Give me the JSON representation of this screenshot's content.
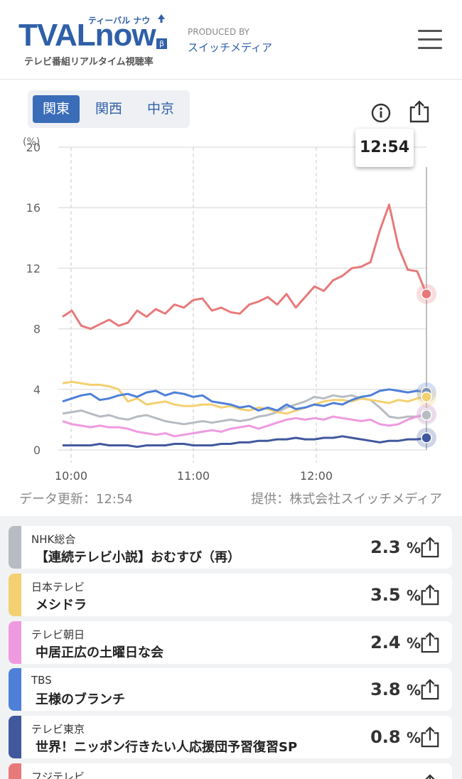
{
  "header": {
    "logo_main": "TVALnow",
    "logo_kana": "ティーバル ナウ",
    "logo_beta": "β",
    "tagline": "テレビ番組リアルタイム視聴率",
    "produced_by": "PRODUCED BY",
    "producer": "スイッチメディア"
  },
  "tabs": [
    {
      "label": "関東",
      "active": true
    },
    {
      "label": "関西",
      "active": false
    },
    {
      "label": "中京",
      "active": false
    }
  ],
  "tooltip_time": "12:54",
  "chart_data": {
    "type": "line",
    "y_unit": "(%)",
    "ylim": [
      0,
      20
    ],
    "yticks": [
      "0",
      "4",
      "8",
      "12",
      "16",
      "20"
    ],
    "xticks": [
      "10:00",
      "11:00",
      "12:00"
    ],
    "series": [
      {
        "name": "フジテレビ",
        "color": "#e8797a",
        "end": 10.3,
        "values": [
          8.8,
          9.2,
          8.2,
          8.0,
          8.3,
          8.6,
          8.2,
          8.4,
          9.2,
          8.8,
          9.3,
          9.0,
          9.6,
          9.4,
          9.9,
          10.0,
          9.2,
          9.4,
          9.1,
          9.0,
          9.6,
          9.8,
          10.1,
          9.6,
          10.3,
          9.4,
          10.1,
          10.8,
          10.5,
          11.2,
          11.5,
          12.0,
          12.1,
          12.4,
          14.5,
          16.2,
          13.4,
          11.9,
          11.8,
          10.3
        ]
      },
      {
        "name": "TBS",
        "color": "#4f80d9",
        "end": 3.8,
        "values": [
          3.2,
          3.4,
          3.6,
          3.7,
          3.3,
          3.4,
          3.6,
          3.7,
          3.5,
          3.8,
          3.9,
          3.6,
          3.8,
          3.7,
          3.5,
          3.6,
          3.2,
          3.1,
          3.0,
          2.8,
          2.9,
          2.6,
          2.8,
          2.6,
          3.0,
          2.7,
          2.8,
          3.0,
          2.9,
          3.1,
          3.0,
          3.3,
          3.5,
          3.6,
          3.9,
          4.0,
          3.9,
          3.8,
          3.9,
          3.8
        ]
      },
      {
        "name": "日本テレビ",
        "color": "#f3d071",
        "end": 3.5,
        "values": [
          4.4,
          4.5,
          4.4,
          4.3,
          4.3,
          4.2,
          4.0,
          3.2,
          3.4,
          3.0,
          3.1,
          3.2,
          3.0,
          2.9,
          2.9,
          3.0,
          3.0,
          2.8,
          2.9,
          2.7,
          2.6,
          2.8,
          2.7,
          2.5,
          2.4,
          2.6,
          2.8,
          3.0,
          3.2,
          3.3,
          3.3,
          3.2,
          3.4,
          3.3,
          3.2,
          3.1,
          3.3,
          3.2,
          3.4,
          3.5
        ]
      },
      {
        "name": "テレビ朝日",
        "color": "#ef9ae0",
        "end": 2.4,
        "values": [
          1.9,
          1.7,
          1.6,
          1.5,
          1.6,
          1.5,
          1.5,
          1.4,
          1.2,
          1.1,
          1.0,
          1.1,
          0.9,
          1.0,
          1.1,
          1.2,
          1.3,
          1.2,
          1.4,
          1.5,
          1.6,
          1.4,
          1.6,
          1.8,
          2.0,
          2.1,
          2.0,
          2.1,
          2.0,
          2.2,
          2.1,
          2.0,
          1.9,
          2.0,
          1.7,
          1.6,
          1.7,
          2.0,
          2.2,
          2.4
        ]
      },
      {
        "name": "NHK総合",
        "color": "#b7bbc2",
        "end": 2.3,
        "values": [
          2.4,
          2.5,
          2.6,
          2.4,
          2.2,
          2.3,
          2.1,
          2.0,
          2.2,
          2.3,
          2.1,
          1.9,
          1.8,
          1.7,
          1.8,
          1.9,
          1.8,
          1.9,
          2.0,
          1.9,
          2.0,
          2.2,
          2.3,
          2.5,
          2.8,
          3.0,
          3.2,
          3.5,
          3.4,
          3.6,
          3.5,
          3.6,
          3.4,
          3.3,
          2.8,
          2.2,
          2.1,
          2.2,
          2.2,
          2.3
        ]
      },
      {
        "name": "テレビ東京",
        "color": "#41589e",
        "end": 0.8,
        "values": [
          0.3,
          0.3,
          0.3,
          0.3,
          0.4,
          0.3,
          0.3,
          0.3,
          0.2,
          0.3,
          0.3,
          0.3,
          0.4,
          0.4,
          0.3,
          0.3,
          0.3,
          0.4,
          0.4,
          0.5,
          0.5,
          0.6,
          0.6,
          0.7,
          0.7,
          0.8,
          0.7,
          0.7,
          0.8,
          0.8,
          0.9,
          0.8,
          0.7,
          0.6,
          0.5,
          0.6,
          0.6,
          0.7,
          0.7,
          0.8
        ]
      }
    ]
  },
  "data_updated": "データ更新：12:54",
  "provider": "提供：株式会社スイッチメディア",
  "channels": [
    {
      "channel": "NHK総合",
      "program": "【連続テレビ小説】おむすび（再）",
      "rate": "2.3",
      "unit": "%",
      "color": "#b7bbc2"
    },
    {
      "channel": "日本テレビ",
      "program": "メシドラ",
      "rate": "3.5",
      "unit": "%",
      "color": "#f3d071"
    },
    {
      "channel": "テレビ朝日",
      "program": "中居正広の土曜日な会",
      "rate": "2.4",
      "unit": "%",
      "color": "#ef9ae0"
    },
    {
      "channel": "TBS",
      "program": "王様のブランチ",
      "rate": "3.8",
      "unit": "%",
      "color": "#4f80d9"
    },
    {
      "channel": "テレビ東京",
      "program": "世界！ニッポン行きたい人応援団予習復習SP",
      "rate": "0.8",
      "unit": "%",
      "color": "#41589e"
    },
    {
      "channel": "フジテレビ",
      "program": "",
      "rate": "",
      "unit": "",
      "color": "#e8797a"
    }
  ]
}
